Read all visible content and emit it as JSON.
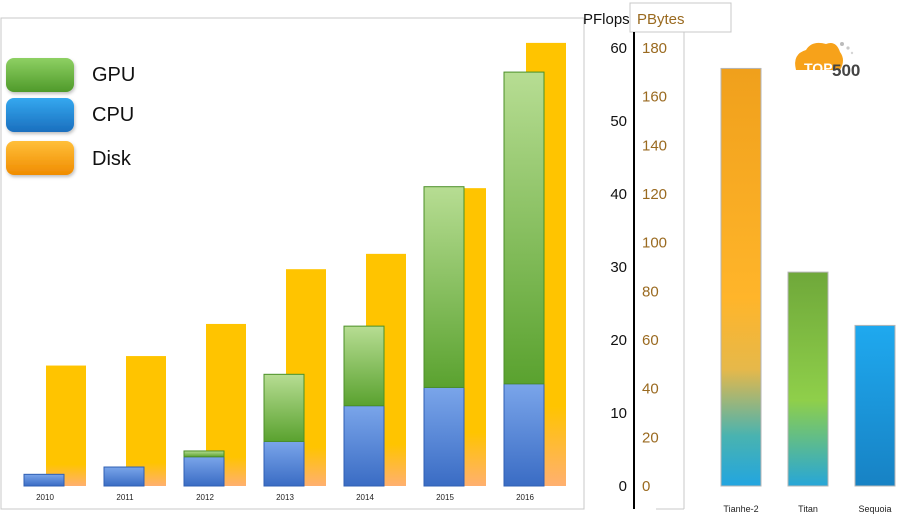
{
  "chart_data": [
    {
      "type": "bar",
      "categories": [
        "2010",
        "2011",
        "2012",
        "2013",
        "2014",
        "2015",
        "2016"
      ],
      "series": [
        {
          "name": "GPU",
          "color": "#6db33f",
          "values": [
            0.0,
            0.0,
            0.8,
            9.2,
            10.9,
            27.5,
            42.7
          ]
        },
        {
          "name": "CPU",
          "color": "#4a7fd0",
          "values": [
            1.6,
            2.6,
            4.0,
            6.1,
            11.0,
            13.5,
            14.0
          ]
        },
        {
          "name": "Disk",
          "color": "#ffc400",
          "values": [
            16.5,
            17.8,
            22.2,
            29.7,
            31.8,
            40.8,
            60.7
          ]
        }
      ],
      "stacked_series": [
        "CPU",
        "GPU"
      ],
      "legend_position": "top-left",
      "grid": false
    },
    {
      "type": "bar",
      "categories": [
        "Tianhe-2",
        "Titan",
        "Sequoia"
      ],
      "values": [
        57.2,
        29.3,
        22.0
      ],
      "colors": [
        "#f39c12",
        "#7cb342",
        "#29a8e0"
      ],
      "logo_text": "TOP 500",
      "grid": false
    }
  ],
  "axes": {
    "pflops": {
      "label": "PFlops",
      "ticks": [
        "60",
        "50",
        "40",
        "30",
        "20",
        "10",
        "0"
      ],
      "ylim": [
        0,
        60
      ]
    },
    "pbytes": {
      "label": "PBytes",
      "ticks": [
        "180",
        "160",
        "140",
        "120",
        "100",
        "80",
        "60",
        "40",
        "20",
        "0"
      ],
      "ylim": [
        0,
        180
      ]
    }
  },
  "colors": {
    "pbytes_text": "#9a6a20"
  }
}
